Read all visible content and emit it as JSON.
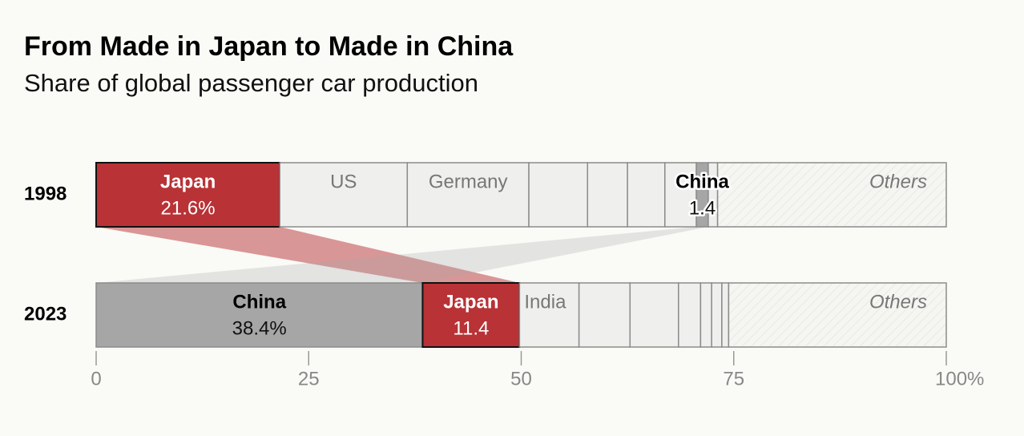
{
  "chart_data": {
    "type": "stacked-bar",
    "title": "From Made in Japan to Made in China",
    "subtitle": "Share of global passenger car production",
    "categories": [
      "1998",
      "2023"
    ],
    "bars": [
      {
        "names": [
          "Japan",
          "US",
          "Germany",
          null,
          null,
          null,
          null,
          "China",
          null,
          "Others"
        ],
        "values": [
          21.6,
          15.0,
          14.3,
          6.9,
          4.7,
          4.4,
          3.7,
          1.4,
          1.1,
          26.9
        ],
        "value_labels": [
          "21.6%",
          null,
          null,
          null,
          null,
          null,
          null,
          "1.4",
          null,
          null
        ],
        "colors": [
          "#b83236",
          "#efefed",
          "#efefed",
          "#efefed",
          "#efefed",
          "#efefed",
          "#efefed",
          "#a6a6a6",
          "#efefed",
          "#f5f5f2"
        ]
      },
      {
        "names": [
          "China",
          "Japan",
          "India",
          null,
          null,
          null,
          null,
          null,
          null,
          "Others"
        ],
        "values": [
          38.4,
          11.4,
          7.0,
          6.0,
          5.7,
          2.6,
          1.3,
          1.2,
          0.8,
          25.6
        ],
        "value_labels": [
          "38.4%",
          "11.4",
          null,
          null,
          null,
          null,
          null,
          null,
          null,
          null
        ],
        "colors": [
          "#a6a6a6",
          "#b83236",
          "#efefed",
          "#efefed",
          "#efefed",
          "#efefed",
          "#efefed",
          "#efefed",
          "#efefed",
          "#f5f5f2"
        ]
      }
    ],
    "xlim": [
      0,
      100
    ],
    "xticks": [
      0,
      25,
      50,
      75,
      {
        "value": 100,
        "label": "100%"
      }
    ]
  }
}
